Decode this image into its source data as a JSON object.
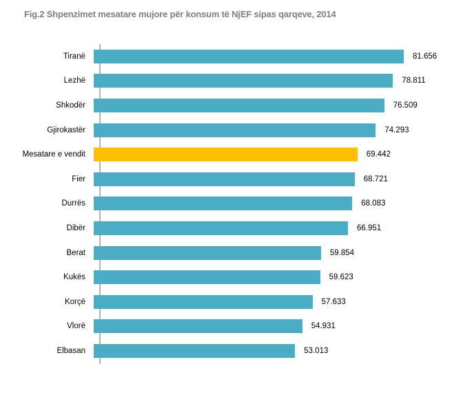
{
  "title": "Fig.2 Shpenzimet mesatare mujore për konsum të NjEF sipas qarqeve, 2014",
  "chart_data": {
    "type": "bar",
    "orientation": "horizontal",
    "title": "Fig.2 Shpenzimet mesatare mujore për konsum të NjEF sipas qarqeve, 2014",
    "categories": [
      "Tiranë",
      "Lezhë",
      "Shkodër",
      "Gjirokastër",
      "Mesatare e vendit",
      "Fier",
      "Durrës",
      "Dibër",
      "Berat",
      "Kukës",
      "Korçë",
      "Vlorë",
      "Elbasan"
    ],
    "values": [
      81.656,
      78.811,
      76.509,
      74.293,
      69.442,
      68.721,
      68.083,
      66.951,
      59.854,
      59.623,
      57.633,
      54.931,
      53.013
    ],
    "value_labels": [
      "81.656",
      "78.811",
      "76.509",
      "74.293",
      "69.442",
      "68.721",
      "68.083",
      "66.951",
      "59.854",
      "59.623",
      "57.633",
      "54.931",
      "53.013"
    ],
    "xlabel": "",
    "ylabel": "",
    "xlim": [
      0,
      90
    ],
    "grid": false,
    "legend": false,
    "sorted": "descending",
    "highlight_category": "Mesatare e vendit",
    "colors": {
      "bar": "#4BACC6",
      "highlight": "#FFC000",
      "axis": "#B3B3B3",
      "title_text": "#7F7F7F",
      "label_text": "#000000"
    }
  }
}
